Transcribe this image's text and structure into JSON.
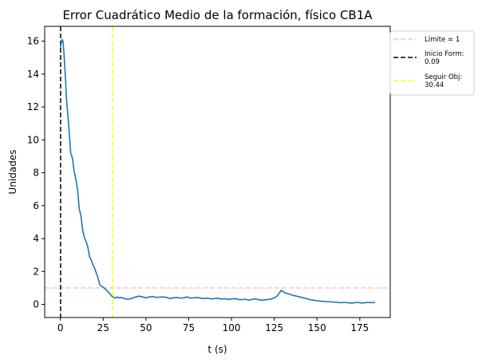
{
  "chart_data": {
    "type": "line",
    "title": "Error Cuadrático Medio de la formación, físico CB1A",
    "xlabel": "t (s)",
    "ylabel": "Unidades",
    "xlim": [
      -9.2,
      192.8
    ],
    "ylim": [
      -0.8,
      16.9
    ],
    "xticks": [
      0,
      25,
      50,
      75,
      100,
      125,
      150,
      175
    ],
    "yticks": [
      0,
      2,
      4,
      6,
      8,
      10,
      12,
      14,
      16
    ],
    "grid": false,
    "legend_position": "outside-right",
    "series": [
      {
        "color": "#1f77b4",
        "x": [
          0,
          0.5,
          1,
          1.5,
          2,
          2.5,
          3,
          3.5,
          4,
          5,
          6,
          7,
          8,
          9,
          10,
          11,
          12,
          13,
          14,
          15,
          16,
          17,
          18,
          19,
          20,
          21,
          22,
          23,
          24,
          25,
          26,
          27,
          28,
          29,
          30,
          31,
          32,
          33,
          34,
          35,
          36,
          38,
          40,
          42,
          44,
          46,
          48,
          50,
          52,
          54,
          56,
          58,
          60,
          62,
          64,
          66,
          68,
          70,
          72,
          74,
          76,
          78,
          80,
          82,
          84,
          86,
          88,
          90,
          92,
          94,
          96,
          98,
          100,
          102,
          104,
          106,
          108,
          110,
          112,
          114,
          116,
          118,
          120,
          122,
          124,
          126,
          127,
          128,
          129,
          130,
          131,
          132,
          134,
          136,
          138,
          140,
          142,
          144,
          146,
          148,
          150,
          152,
          154,
          156,
          158,
          160,
          162,
          164,
          166,
          168,
          170,
          172,
          174,
          176,
          178,
          180,
          182,
          184
        ],
        "y": [
          15.6,
          15.9,
          16.1,
          16.0,
          15.4,
          14.5,
          13.6,
          12.6,
          11.9,
          10.7,
          9.2,
          8.9,
          8.1,
          7.6,
          7.0,
          5.8,
          5.4,
          4.5,
          4.1,
          3.8,
          3.5,
          2.9,
          2.7,
          2.4,
          2.2,
          1.9,
          1.6,
          1.2,
          1.1,
          1.05,
          0.95,
          0.85,
          0.75,
          0.65,
          0.5,
          0.42,
          0.38,
          0.45,
          0.4,
          0.42,
          0.4,
          0.33,
          0.32,
          0.38,
          0.45,
          0.5,
          0.45,
          0.4,
          0.45,
          0.48,
          0.42,
          0.44,
          0.45,
          0.42,
          0.35,
          0.4,
          0.42,
          0.38,
          0.4,
          0.45,
          0.38,
          0.4,
          0.42,
          0.38,
          0.35,
          0.38,
          0.33,
          0.35,
          0.38,
          0.32,
          0.35,
          0.3,
          0.33,
          0.35,
          0.3,
          0.28,
          0.32,
          0.25,
          0.3,
          0.33,
          0.27,
          0.25,
          0.28,
          0.3,
          0.35,
          0.45,
          0.55,
          0.7,
          0.85,
          0.8,
          0.72,
          0.68,
          0.62,
          0.55,
          0.5,
          0.45,
          0.4,
          0.35,
          0.28,
          0.25,
          0.22,
          0.2,
          0.18,
          0.17,
          0.15,
          0.14,
          0.12,
          0.1,
          0.12,
          0.1,
          0.08,
          0.1,
          0.12,
          0.08,
          0.1,
          0.12,
          0.1,
          0.12
        ]
      }
    ],
    "reference_lines": [
      {
        "orientation": "horizontal",
        "value": 1,
        "color": "#ffc0cb",
        "style": "dashed",
        "label": "Límite = 1"
      },
      {
        "orientation": "vertical",
        "value": 0.09,
        "color": "#000000",
        "style": "dashed",
        "label_lines": [
          "Inicio Form:",
          "0.09"
        ]
      },
      {
        "orientation": "vertical",
        "value": 30.44,
        "color": "#ffff00",
        "style": "dashed",
        "label_lines": [
          "Seguir Obj:",
          "30.44"
        ]
      }
    ]
  }
}
